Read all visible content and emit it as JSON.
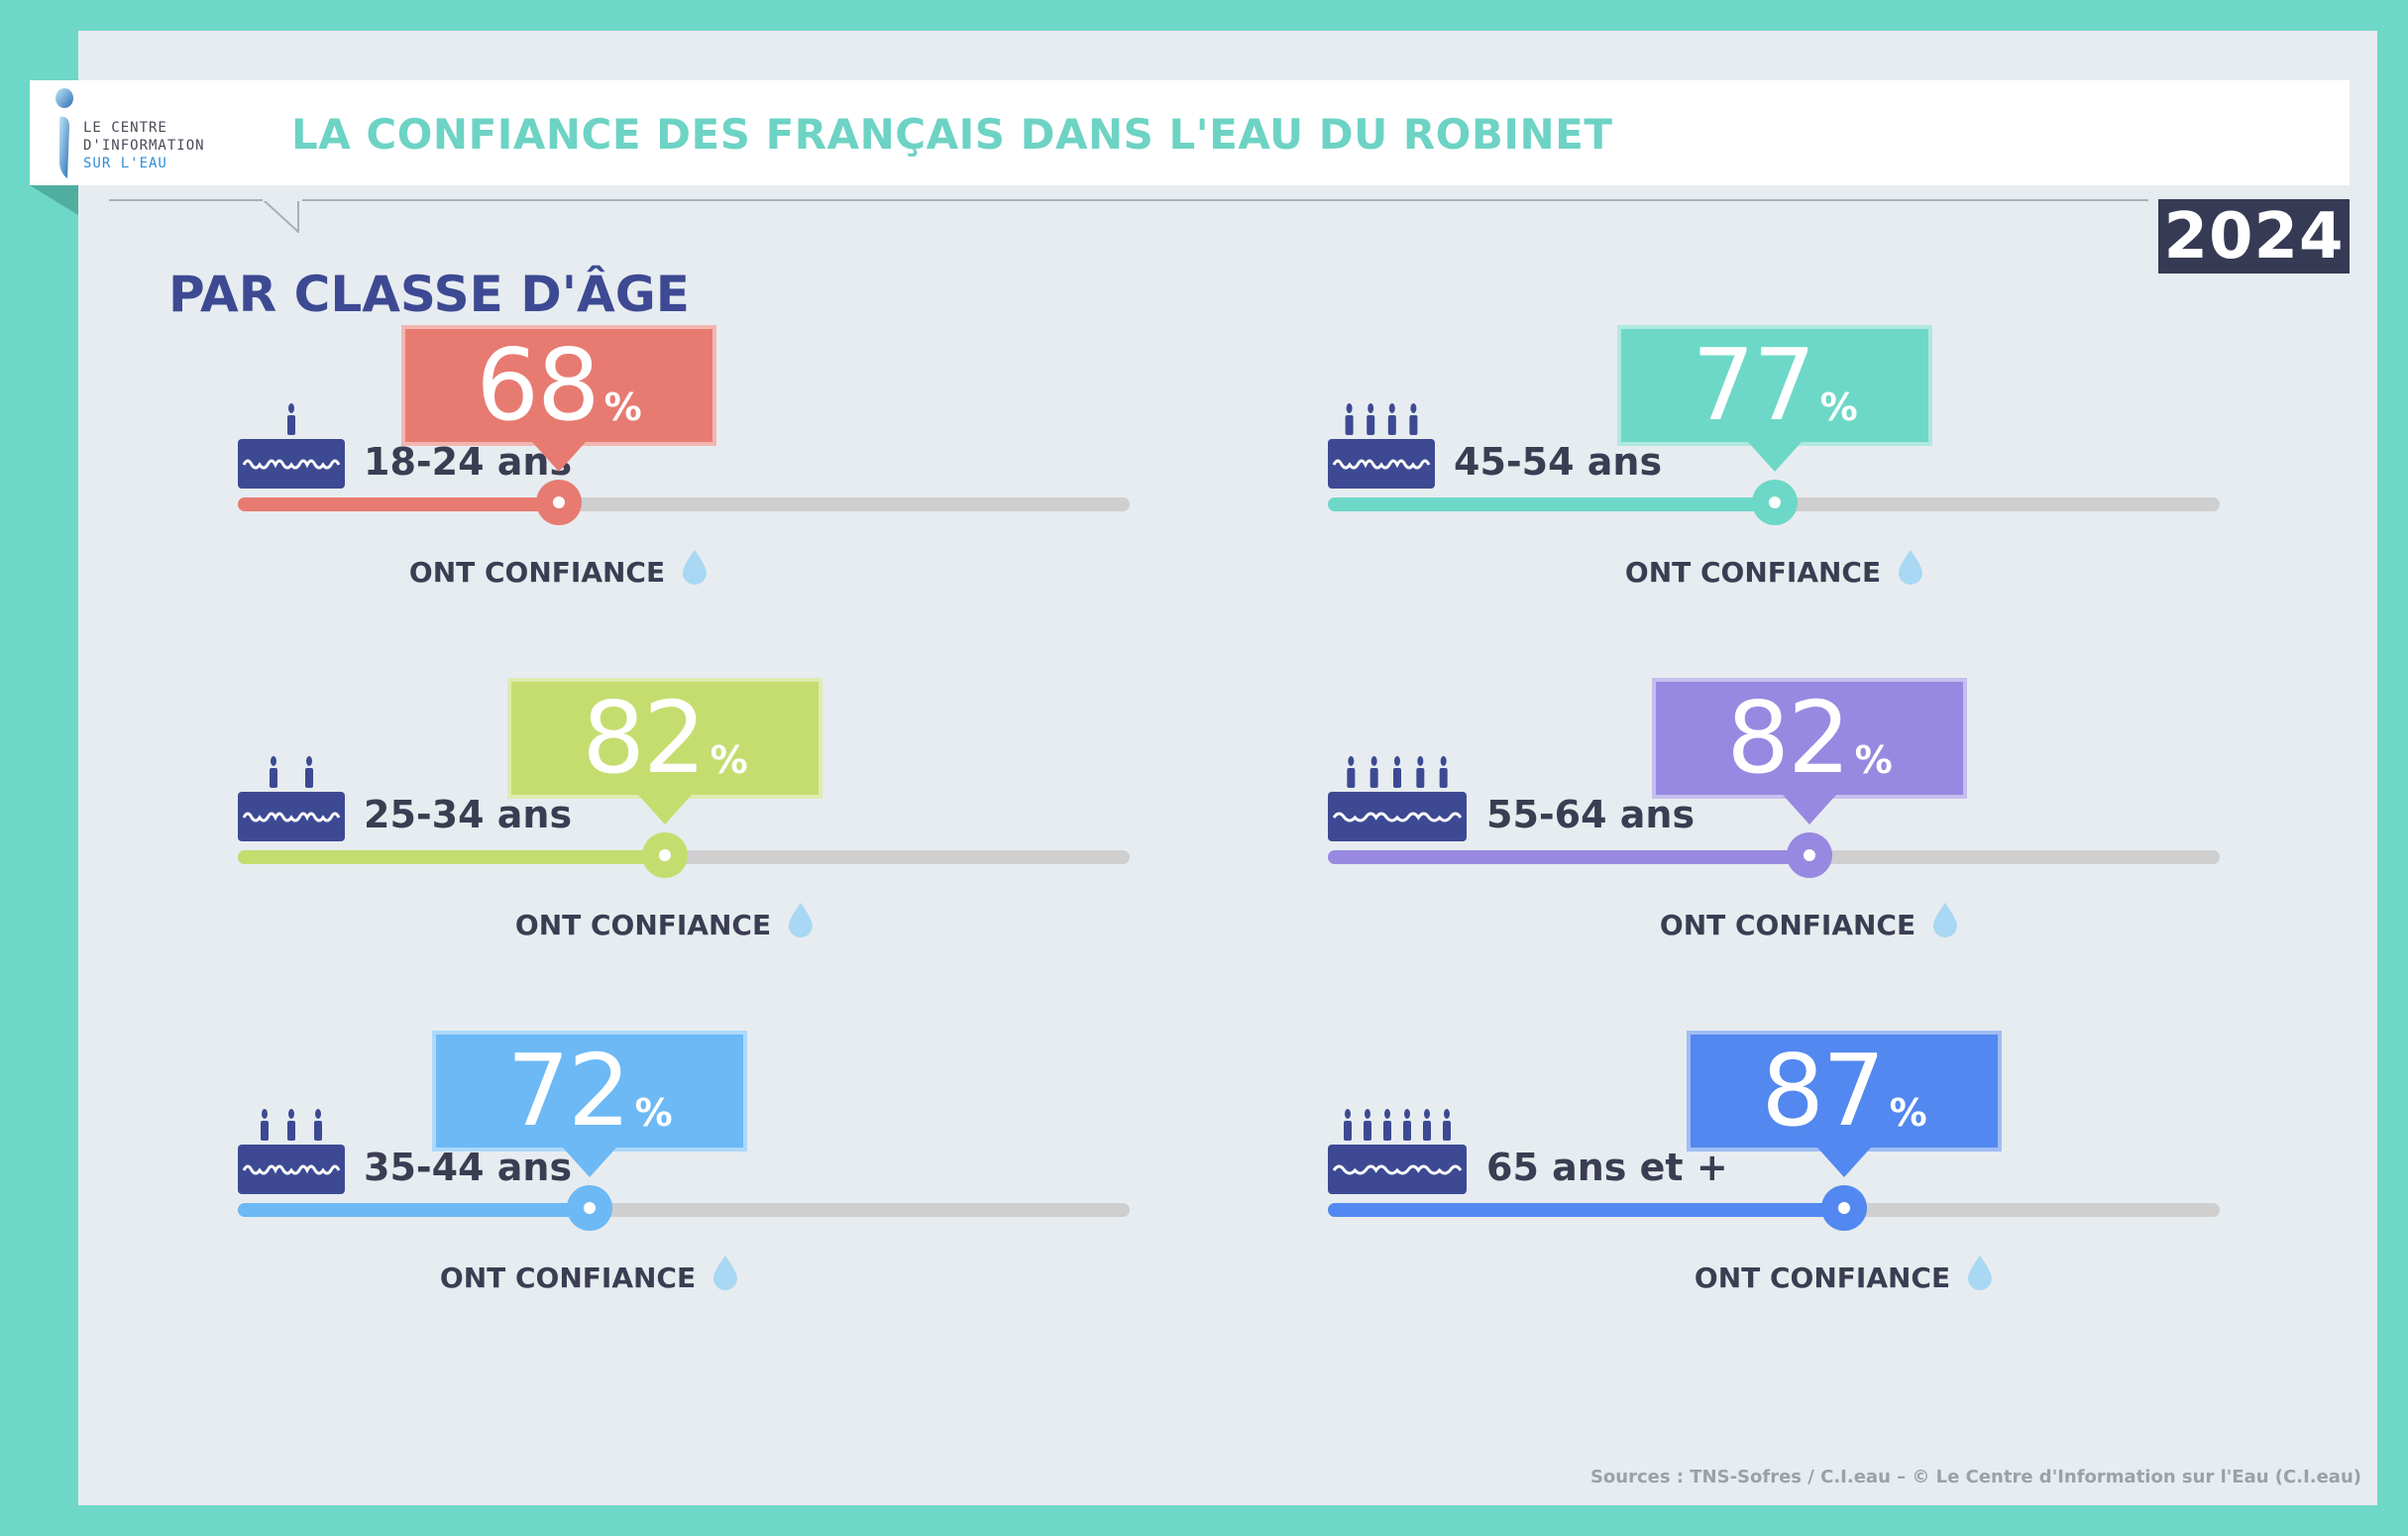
{
  "header": {
    "logo_lines": [
      "LE CENTRE",
      "D'INFORMATION",
      "SUR L'EAU"
    ],
    "title": "LA CONFIANCE DES FRANÇAIS DANS L'EAU DU ROBINET",
    "year": "2024"
  },
  "section_title": "PAR CLASSE D'ÂGE",
  "chart_data": {
    "type": "bar",
    "categories": [
      "18-24 ans",
      "25-34 ans",
      "35-44 ans",
      "45-54 ans",
      "55-64 ans",
      "65 ans et +"
    ],
    "values": [
      68,
      82,
      72,
      77,
      82,
      87
    ],
    "unit": "%",
    "value_label": "ONT CONFIANCE",
    "ylim": [
      0,
      100
    ]
  },
  "colors": {
    "18-24 ans": "#e77b72",
    "25-34 ans": "#c5dd6f",
    "35-44 ans": "#6cb9f6",
    "45-54 ans": "#6dd8c7",
    "55-64 ans": "#9789e1",
    "65 ans et +": "#5288ef",
    "cake": "#3d4a93",
    "drop": "#a8d8f3"
  },
  "cake_candles": [
    1,
    2,
    3,
    4,
    5,
    6
  ],
  "sources": "Sources : TNS-Sofres / C.I.eau – © Le Centre d'Information sur l'Eau (C.I.eau)"
}
